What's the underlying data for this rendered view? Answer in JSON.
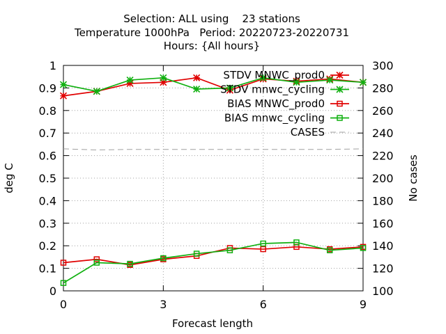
{
  "titles": [
    "Selection: ALL using    23 stations",
    "Temperature 1000hPa   Period: 20220723-20220731",
    "Hours: {All hours}"
  ],
  "colors": {
    "mnwc_prod0": "#e00000",
    "mnwc_cycling": "#10b010",
    "cases": "#a0a0a0",
    "grid": "#a0a0a0"
  },
  "chart_data": {
    "type": "line",
    "xlabel": "Forecast length",
    "ylabel": "deg C",
    "y2label": "No cases",
    "x": [
      0,
      1,
      2,
      3,
      4,
      5,
      6,
      7,
      8,
      9
    ],
    "xlim": [
      0,
      9
    ],
    "xticks": [
      "0",
      "3",
      "6",
      "9"
    ],
    "xtick_values": [
      0,
      3,
      6,
      9
    ],
    "ylim": [
      0,
      1
    ],
    "yticks": [
      "0",
      "0.1",
      "0.2",
      "0.3",
      "0.4",
      "0.5",
      "0.6",
      "0.7",
      "0.8",
      "0.9",
      "1"
    ],
    "ytick_values": [
      0,
      0.1,
      0.2,
      0.3,
      0.4,
      0.5,
      0.6,
      0.7,
      0.8,
      0.9,
      1
    ],
    "y2lim": [
      100,
      300
    ],
    "y2ticks": [
      "100",
      "120",
      "140",
      "160",
      "180",
      "200",
      "220",
      "240",
      "260",
      "280",
      "300"
    ],
    "y2tick_values": [
      100,
      120,
      140,
      160,
      180,
      200,
      220,
      240,
      260,
      280,
      300
    ],
    "grid": true,
    "legend_position": "top-right",
    "series": [
      {
        "name": "STDV MNWC_prod0",
        "axis": "y",
        "color_key": "mnwc_prod0",
        "marker": "star",
        "values": [
          0.865,
          0.885,
          0.92,
          0.925,
          0.945,
          0.89,
          0.94,
          0.93,
          0.94,
          0.925
        ]
      },
      {
        "name": "STDV mnwc_cycling",
        "axis": "y",
        "color_key": "mnwc_cycling",
        "marker": "star",
        "values": [
          0.915,
          0.885,
          0.935,
          0.945,
          0.895,
          0.9,
          0.945,
          0.925,
          0.935,
          0.925
        ]
      },
      {
        "name": "BIAS MNWC_prod0",
        "axis": "y",
        "color_key": "mnwc_prod0",
        "marker": "square",
        "values": [
          0.125,
          0.14,
          0.115,
          0.14,
          0.155,
          0.19,
          0.185,
          0.195,
          0.185,
          0.195
        ]
      },
      {
        "name": "BIAS mnwc_cycling",
        "axis": "y",
        "color_key": "mnwc_cycling",
        "marker": "square",
        "values": [
          0.035,
          0.125,
          0.12,
          0.145,
          0.165,
          0.18,
          0.21,
          0.215,
          0.18,
          0.19
        ]
      },
      {
        "name": "CASES",
        "axis": "y2",
        "color_key": "cases",
        "marker": "none",
        "dashed": true,
        "values": [
          226,
          225,
          225.5,
          225.5,
          225.5,
          225.5,
          225.5,
          225.5,
          225.5,
          226
        ]
      }
    ]
  }
}
